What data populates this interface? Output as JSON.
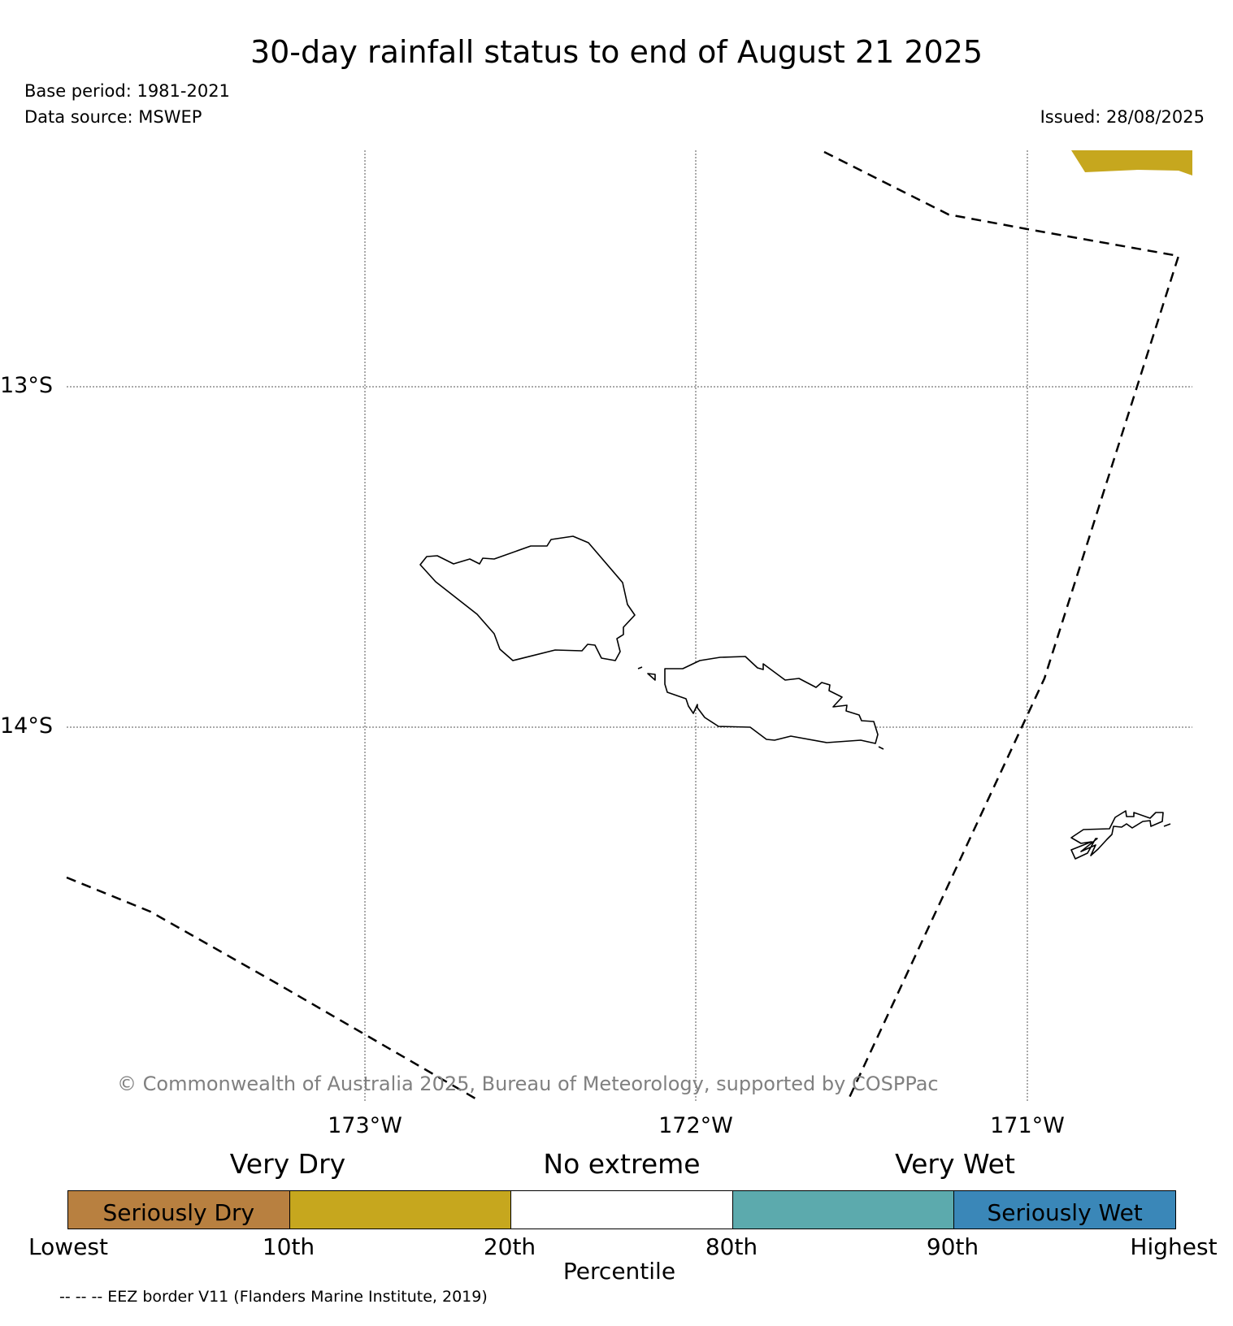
{
  "title": "30-day rainfall status to end of August 21 2025",
  "base_period": "Base period: 1981-2021",
  "data_source": "Data source: MSWEP",
  "issued": "Issued: 28/08/2025",
  "lat_labels": [
    "13°S",
    "14°S"
  ],
  "lon_labels": [
    "173°W",
    "172°W",
    "171°W"
  ],
  "copyright": "© Commonwealth of Australia 2025, Bureau of Meteorology, supported by COSPPac",
  "legend": {
    "categories": [
      "Very Dry",
      "No extreme",
      "Very Wet"
    ],
    "segments": [
      {
        "label": "Seriously Dry",
        "color": "#b88040"
      },
      {
        "label": "",
        "color": "#c6a71e"
      },
      {
        "label": "",
        "color": "#ffffff"
      },
      {
        "label": "",
        "color": "#5caaad"
      },
      {
        "label": "Seriously Wet",
        "color": "#3a87b8"
      }
    ],
    "percentiles": [
      "Lowest",
      "10th",
      "20th",
      "80th",
      "90th",
      "Highest"
    ],
    "axis_label": "Percentile"
  },
  "eez_note": "-- -- -- EEZ border V11 (Flanders Marine Institute, 2019)",
  "colors": {
    "very_dry_patch": "#c6a71e",
    "grid": "#555555",
    "coast": "#000000"
  }
}
